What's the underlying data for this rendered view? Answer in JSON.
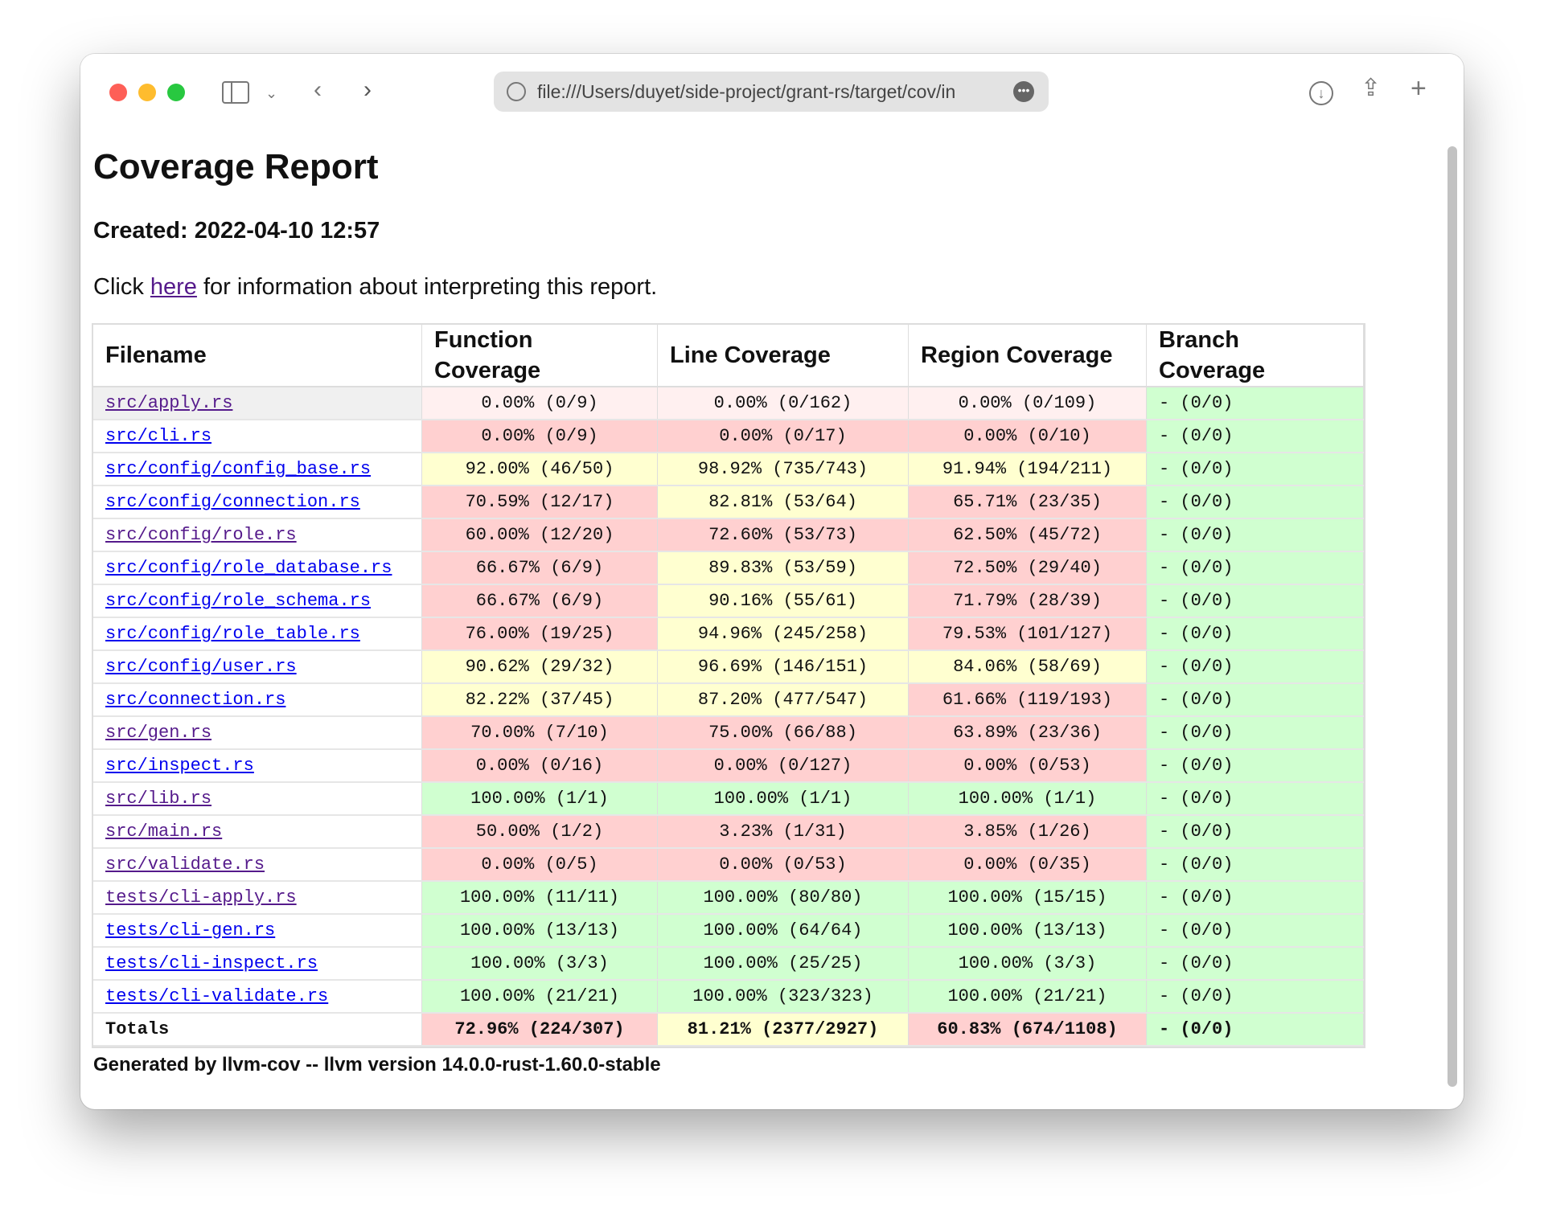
{
  "browser": {
    "url": "file:///Users/duyet/side-project/grant-rs/target/cov/index.html",
    "url_visible": "file:///Users/duyet/side-project/grant-rs/target/cov/in",
    "colors": {
      "close": "#fe5f57",
      "minimize": "#febc2e",
      "zoom": "#28c840"
    }
  },
  "page": {
    "title": "Coverage Report",
    "created": "Created: 2022-04-10 12:57",
    "info_prefix": "Click ",
    "info_link": "here",
    "info_suffix": " for information about interpreting this report.",
    "footer": "Generated by llvm-cov -- llvm version 14.0.0-rust-1.60.0-stable"
  },
  "colors": {
    "low": "#ffd0d0",
    "medium": "#ffffd0",
    "high": "#d0ffd0"
  },
  "table": {
    "headers": [
      "Filename",
      "Function Coverage",
      "Line Coverage",
      "Region Coverage",
      "Branch Coverage"
    ],
    "rows": [
      {
        "file": "src/apply.rs",
        "visited": true,
        "fn": "0.00% (0/9)",
        "line": "0.00% (0/162)",
        "region": "0.00% (0/109)",
        "branch": "- (0/0)"
      },
      {
        "file": "src/cli.rs",
        "visited": false,
        "fn": "0.00% (0/9)",
        "line": "0.00% (0/17)",
        "region": "0.00% (0/10)",
        "branch": "- (0/0)"
      },
      {
        "file": "src/config/config_base.rs",
        "visited": false,
        "fn": "92.00% (46/50)",
        "line": "98.92% (735/743)",
        "region": "91.94% (194/211)",
        "branch": "- (0/0)"
      },
      {
        "file": "src/config/connection.rs",
        "visited": false,
        "fn": "70.59% (12/17)",
        "line": "82.81% (53/64)",
        "region": "65.71% (23/35)",
        "branch": "- (0/0)"
      },
      {
        "file": "src/config/role.rs",
        "visited": true,
        "fn": "60.00% (12/20)",
        "line": "72.60% (53/73)",
        "region": "62.50% (45/72)",
        "branch": "- (0/0)"
      },
      {
        "file": "src/config/role_database.rs",
        "visited": false,
        "fn": "66.67% (6/9)",
        "line": "89.83% (53/59)",
        "region": "72.50% (29/40)",
        "branch": "- (0/0)"
      },
      {
        "file": "src/config/role_schema.rs",
        "visited": false,
        "fn": "66.67% (6/9)",
        "line": "90.16% (55/61)",
        "region": "71.79% (28/39)",
        "branch": "- (0/0)"
      },
      {
        "file": "src/config/role_table.rs",
        "visited": false,
        "fn": "76.00% (19/25)",
        "line": "94.96% (245/258)",
        "region": "79.53% (101/127)",
        "branch": "- (0/0)"
      },
      {
        "file": "src/config/user.rs",
        "visited": false,
        "fn": "90.62% (29/32)",
        "line": "96.69% (146/151)",
        "region": "84.06% (58/69)",
        "branch": "- (0/0)"
      },
      {
        "file": "src/connection.rs",
        "visited": false,
        "fn": "82.22% (37/45)",
        "line": "87.20% (477/547)",
        "region": "61.66% (119/193)",
        "branch": "- (0/0)"
      },
      {
        "file": "src/gen.rs",
        "visited": true,
        "fn": "70.00% (7/10)",
        "line": "75.00% (66/88)",
        "region": "63.89% (23/36)",
        "branch": "- (0/0)"
      },
      {
        "file": "src/inspect.rs",
        "visited": false,
        "fn": "0.00% (0/16)",
        "line": "0.00% (0/127)",
        "region": "0.00% (0/53)",
        "branch": "- (0/0)"
      },
      {
        "file": "src/lib.rs",
        "visited": true,
        "fn": "100.00% (1/1)",
        "line": "100.00% (1/1)",
        "region": "100.00% (1/1)",
        "branch": "- (0/0)"
      },
      {
        "file": "src/main.rs",
        "visited": true,
        "fn": "50.00% (1/2)",
        "line": "3.23% (1/31)",
        "region": "3.85% (1/26)",
        "branch": "- (0/0)"
      },
      {
        "file": "src/validate.rs",
        "visited": true,
        "fn": "0.00% (0/5)",
        "line": "0.00% (0/53)",
        "region": "0.00% (0/35)",
        "branch": "- (0/0)"
      },
      {
        "file": "tests/cli-apply.rs",
        "visited": true,
        "fn": "100.00% (11/11)",
        "line": "100.00% (80/80)",
        "region": "100.00% (15/15)",
        "branch": "- (0/0)"
      },
      {
        "file": "tests/cli-gen.rs",
        "visited": false,
        "fn": "100.00% (13/13)",
        "line": "100.00% (64/64)",
        "region": "100.00% (13/13)",
        "branch": "- (0/0)"
      },
      {
        "file": "tests/cli-inspect.rs",
        "visited": false,
        "fn": "100.00% (3/3)",
        "line": "100.00% (25/25)",
        "region": "100.00% (3/3)",
        "branch": "- (0/0)"
      },
      {
        "file": "tests/cli-validate.rs",
        "visited": false,
        "fn": "100.00% (21/21)",
        "line": "100.00% (323/323)",
        "region": "100.00% (21/21)",
        "branch": "- (0/0)"
      }
    ],
    "totals": {
      "label": "Totals",
      "fn": "72.96% (224/307)",
      "line": "81.21% (2377/2927)",
      "region": "60.83% (674/1108)",
      "branch": "- (0/0)"
    }
  }
}
